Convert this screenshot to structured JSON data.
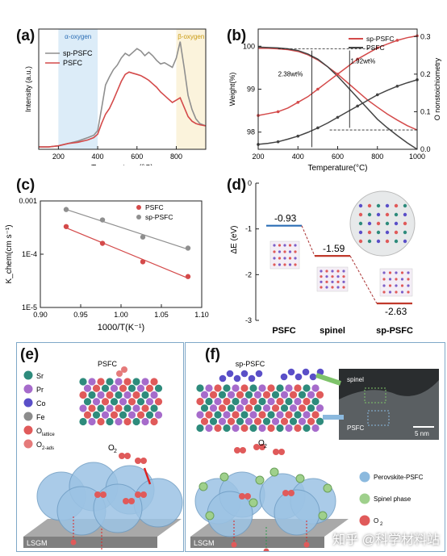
{
  "panels": {
    "a": "(a)",
    "b": "(b)",
    "c": "(c)",
    "d": "(d)",
    "e": "(e)",
    "f": "(f)"
  },
  "chart_data": [
    {
      "id": "a",
      "type": "line",
      "xlabel": "Temperature (°C)",
      "ylabel": "Intensity (a.u.)",
      "xlim": [
        100,
        950
      ],
      "xticks": [
        200,
        400,
        600,
        800
      ],
      "region_labels": [
        "α-oxygen",
        "β-oxygen"
      ],
      "regions": [
        {
          "from": 200,
          "to": 400,
          "color": "#dcecf8"
        },
        {
          "from": 800,
          "to": 950,
          "color": "#fbf3dc"
        }
      ],
      "series": [
        {
          "name": "sp-PSFC",
          "color": "#8f8f8f",
          "x": [
            100,
            150,
            200,
            250,
            300,
            350,
            380,
            400,
            420,
            440,
            460,
            480,
            500,
            520,
            540,
            560,
            580,
            600,
            620,
            640,
            660,
            680,
            700,
            720,
            740,
            760,
            780,
            800,
            820,
            840,
            860,
            880,
            900,
            920,
            950
          ],
          "y": [
            0.02,
            0.02,
            0.03,
            0.05,
            0.07,
            0.1,
            0.12,
            0.16,
            0.35,
            0.55,
            0.62,
            0.68,
            0.72,
            0.78,
            0.82,
            0.8,
            0.83,
            0.86,
            0.84,
            0.8,
            0.83,
            0.8,
            0.76,
            0.73,
            0.74,
            0.72,
            0.7,
            0.78,
            0.92,
            0.7,
            0.46,
            0.34,
            0.26,
            0.22,
            0.2
          ]
        },
        {
          "name": "PSFC",
          "color": "#d44a4a",
          "x": [
            100,
            150,
            200,
            250,
            300,
            350,
            380,
            400,
            420,
            440,
            460,
            480,
            500,
            520,
            540,
            560,
            580,
            600,
            620,
            640,
            660,
            680,
            700,
            720,
            740,
            760,
            780,
            800,
            820,
            840,
            860,
            880,
            900,
            920,
            950
          ],
          "y": [
            0.02,
            0.02,
            0.03,
            0.05,
            0.06,
            0.08,
            0.1,
            0.13,
            0.22,
            0.3,
            0.35,
            0.42,
            0.5,
            0.58,
            0.64,
            0.66,
            0.65,
            0.64,
            0.63,
            0.61,
            0.59,
            0.56,
            0.53,
            0.49,
            0.46,
            0.43,
            0.4,
            0.42,
            0.44,
            0.36,
            0.28,
            0.24,
            0.22,
            0.21,
            0.2
          ]
        }
      ]
    },
    {
      "id": "b",
      "type": "line",
      "xlabel": "Temperature(°C)",
      "ylabel": "Weight(%)",
      "ylabel_right": "O nonstoichiometry",
      "xlim": [
        200,
        1000
      ],
      "xticks": [
        200,
        400,
        600,
        800,
        1000
      ],
      "ylim": [
        97.6,
        100.4
      ],
      "yticks": [
        98,
        99,
        100
      ],
      "ylim_right": [
        0.0,
        0.32
      ],
      "yticks_right": [
        0.0,
        0.1,
        0.2,
        0.3
      ],
      "annotations": [
        "1.92wt%",
        "2.38wt%"
      ],
      "series": [
        {
          "name": "sp-PSFC",
          "color": "#d44a4a",
          "axis": "left",
          "x": [
            200,
            250,
            300,
            350,
            400,
            450,
            500,
            550,
            600,
            650,
            700,
            750,
            800,
            850,
            900,
            950,
            1000
          ],
          "y": [
            99.95,
            99.95,
            99.94,
            99.92,
            99.88,
            99.8,
            99.68,
            99.52,
            99.35,
            99.15,
            98.95,
            98.75,
            98.58,
            98.42,
            98.28,
            98.15,
            98.05
          ]
        },
        {
          "name": "PSFC",
          "color": "#444444",
          "axis": "left",
          "x": [
            200,
            250,
            300,
            350,
            400,
            450,
            500,
            550,
            600,
            650,
            700,
            750,
            800,
            850,
            900,
            950,
            1000
          ],
          "y": [
            99.98,
            99.97,
            99.96,
            99.94,
            99.9,
            99.82,
            99.7,
            99.52,
            99.3,
            99.05,
            98.8,
            98.55,
            98.3,
            98.1,
            97.92,
            97.75,
            97.6
          ]
        },
        {
          "name": "sp-PSFC δ",
          "color": "#d44a4a",
          "axis": "right",
          "x": [
            200,
            250,
            300,
            350,
            400,
            450,
            500,
            550,
            600,
            650,
            700,
            750,
            800,
            850,
            900,
            950,
            1000
          ],
          "y": [
            0.09,
            0.095,
            0.1,
            0.11,
            0.125,
            0.14,
            0.16,
            0.18,
            0.2,
            0.22,
            0.24,
            0.255,
            0.27,
            0.28,
            0.29,
            0.297,
            0.302
          ]
        },
        {
          "name": "PSFC δ",
          "color": "#444444",
          "axis": "right",
          "x": [
            200,
            250,
            300,
            350,
            400,
            450,
            500,
            550,
            600,
            650,
            700,
            750,
            800,
            850,
            900,
            950,
            1000
          ],
          "y": [
            0.013,
            0.016,
            0.02,
            0.027,
            0.035,
            0.045,
            0.057,
            0.07,
            0.085,
            0.1,
            0.115,
            0.13,
            0.145,
            0.157,
            0.168,
            0.177,
            0.185
          ]
        }
      ]
    },
    {
      "id": "c",
      "type": "scatter",
      "xlabel": "1000/T(K⁻¹)",
      "ylabel": "K_chem(cm s⁻¹)",
      "yscale": "log",
      "xlim": [
        0.9,
        1.1
      ],
      "xticks": [
        "0.90",
        "0.95",
        "1.00",
        "1.05",
        "1.10"
      ],
      "ylim": [
        1e-05,
        0.001
      ],
      "yticks": [
        {
          "v": 1e-05,
          "label": "1E-5"
        },
        {
          "v": 0.0001,
          "label": "1E-4"
        },
        {
          "v": 0.001,
          "label": "0.001"
        }
      ],
      "series": [
        {
          "name": "PSFC",
          "color": "#d44a4a",
          "x": [
            0.932,
            0.977,
            1.027,
            1.083
          ],
          "y": [
            0.00033,
            0.00016,
            7.2e-05,
            3.8e-05
          ]
        },
        {
          "name": "sp-PSFC",
          "color": "#8f8f8f",
          "x": [
            0.932,
            0.977,
            1.027,
            1.083
          ],
          "y": [
            0.00069,
            0.00044,
            0.00021,
            0.00013
          ]
        }
      ]
    },
    {
      "id": "d",
      "type": "line",
      "ylabel": "ΔE (eV)",
      "ylim": [
        -3,
        0
      ],
      "yticks": [
        0,
        -1,
        -2,
        -3
      ],
      "categories": [
        "PSFC",
        "spinel",
        "sp-PSFC"
      ],
      "values": [
        -0.93,
        -1.59,
        -2.63
      ],
      "value_labels": [
        "-0.93",
        "-1.59",
        "-2.63"
      ],
      "colors": [
        "#2a6db5",
        "#c0392b",
        "#c0392b"
      ]
    }
  ],
  "schematic_e": {
    "title": "PSFC",
    "legend": [
      {
        "symbol": "Sr",
        "color": "#2e8b7c"
      },
      {
        "symbol": "Pr",
        "color": "#a66bcb"
      },
      {
        "symbol": "Co",
        "color": "#5a4fc8"
      },
      {
        "symbol": "Fe",
        "color": "#8c8c8c"
      },
      {
        "symbol": "O",
        "sub": "lattice",
        "color": "#e05a5a"
      },
      {
        "symbol": "O",
        "sub": "2-ads",
        "color": "#e57a7a"
      }
    ],
    "o2_label": "O",
    "o2_sub": "2",
    "substrate": "LSGM"
  },
  "schematic_f": {
    "title": "sp-PSFC",
    "o2_label": "O",
    "o2_sub": "2",
    "substrate": "LSGM",
    "tem_labels": [
      "spinel",
      "PSFC"
    ],
    "scalebar": "5 nm",
    "legend": [
      {
        "label": "Perovskite-PSFC",
        "color": "#8bb9de"
      },
      {
        "label": "Spinel phase",
        "color": "#9fd08c"
      },
      {
        "label": "O",
        "sub": "2",
        "color": "#e05a5a"
      }
    ],
    "watermark": "知乎 @科学材料站"
  }
}
